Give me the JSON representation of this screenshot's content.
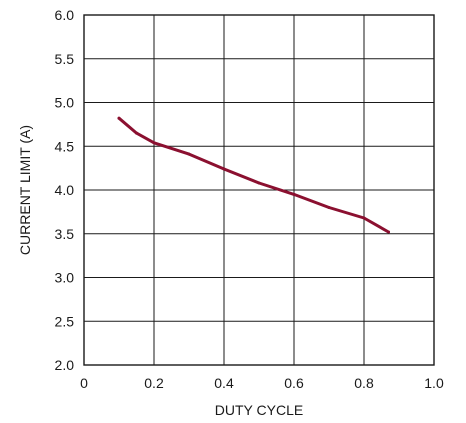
{
  "chart_data": {
    "type": "line",
    "title": "",
    "xlabel": "DUTY CYCLE",
    "ylabel": "CURRENT LIMIT (A)",
    "xlim": [
      0,
      1.0
    ],
    "ylim": [
      2.0,
      6.0
    ],
    "x_ticks": [
      "0",
      "0.2",
      "0.4",
      "0.6",
      "0.8",
      "1.0"
    ],
    "y_ticks": [
      "2.0",
      "2.5",
      "3.0",
      "3.5",
      "4.0",
      "4.5",
      "5.0",
      "5.5",
      "6.0"
    ],
    "grid": true,
    "legend": "none",
    "series": [
      {
        "color": "#8b1030",
        "x": [
          0.1,
          0.15,
          0.2,
          0.3,
          0.4,
          0.5,
          0.6,
          0.7,
          0.8,
          0.87
        ],
        "y": [
          4.82,
          4.65,
          4.54,
          4.41,
          4.24,
          4.08,
          3.95,
          3.8,
          3.68,
          3.52
        ]
      }
    ]
  }
}
